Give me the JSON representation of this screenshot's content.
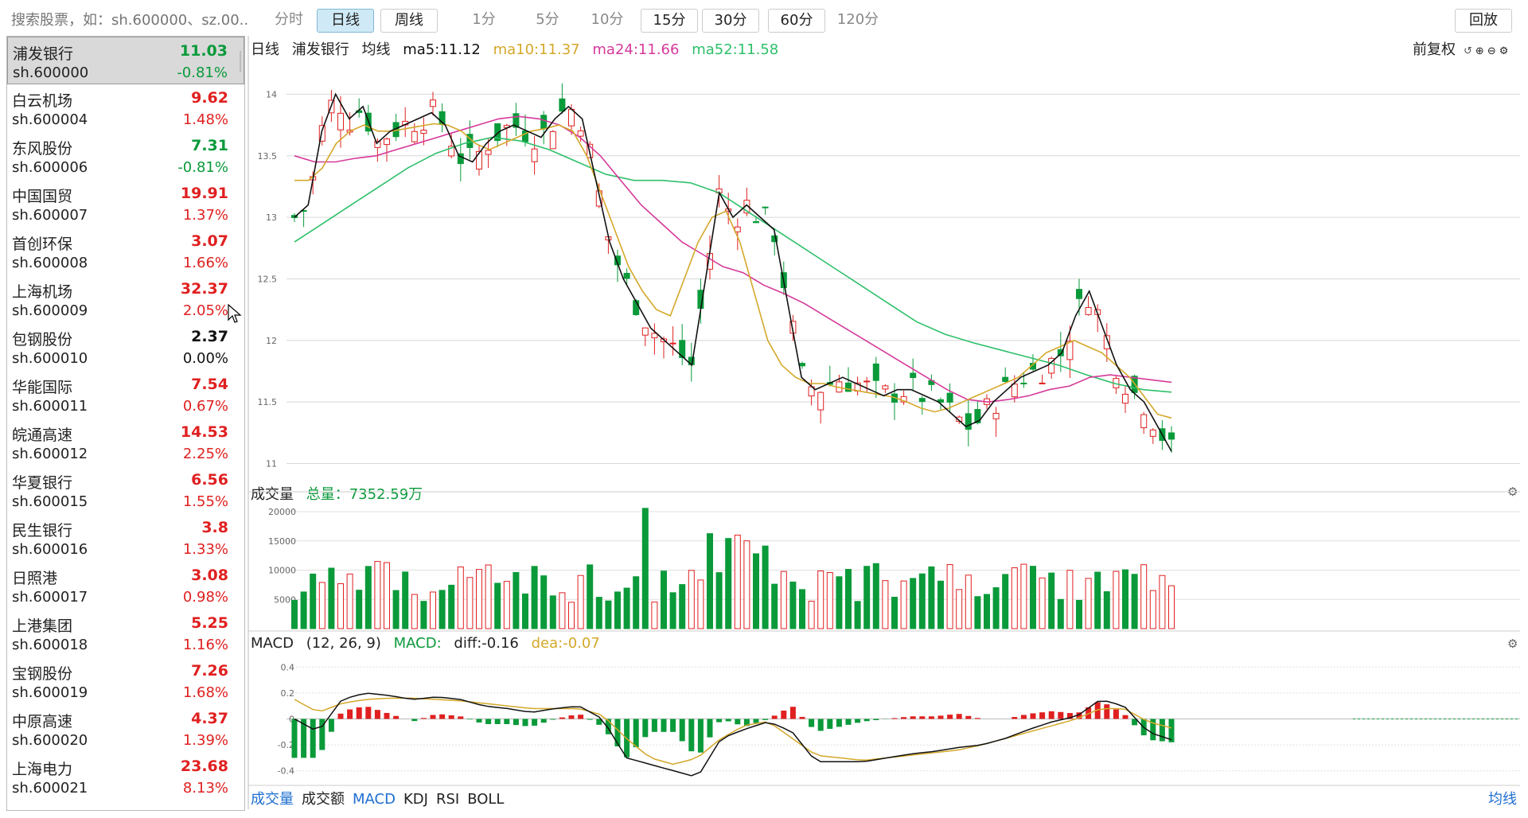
{
  "toolbar": {
    "search_placeholder": "搜索股票，如：sh.600000、sz.00...",
    "periods": [
      "分时",
      "日线",
      "周线",
      "1分",
      "5分",
      "10分",
      "15分",
      "30分",
      "60分",
      "120分"
    ],
    "active": "日线",
    "replay": "回放"
  },
  "stocks": [
    {
      "name": "浦发银行",
      "code": "sh.600000",
      "price": "11.03",
      "pct": "-0.81%",
      "dir": "down"
    },
    {
      "name": "白云机场",
      "code": "sh.600004",
      "price": "9.62",
      "pct": "1.48%",
      "dir": "up"
    },
    {
      "name": "东风股份",
      "code": "sh.600006",
      "price": "7.31",
      "pct": "-0.81%",
      "dir": "down"
    },
    {
      "name": "中国国贸",
      "code": "sh.600007",
      "price": "19.91",
      "pct": "1.37%",
      "dir": "up"
    },
    {
      "name": "首创环保",
      "code": "sh.600008",
      "price": "3.07",
      "pct": "1.66%",
      "dir": "up"
    },
    {
      "name": "上海机场",
      "code": "sh.600009",
      "price": "32.37",
      "pct": "2.05%",
      "dir": "up"
    },
    {
      "name": "包钢股份",
      "code": "sh.600010",
      "price": "2.37",
      "pct": "0.00%",
      "dir": "flat"
    },
    {
      "name": "华能国际",
      "code": "sh.600011",
      "price": "7.54",
      "pct": "0.67%",
      "dir": "up"
    },
    {
      "name": "皖通高速",
      "code": "sh.600012",
      "price": "14.53",
      "pct": "2.25%",
      "dir": "up"
    },
    {
      "name": "华夏银行",
      "code": "sh.600015",
      "price": "6.56",
      "pct": "1.55%",
      "dir": "up"
    },
    {
      "name": "民生银行",
      "code": "sh.600016",
      "price": "3.8",
      "pct": "1.33%",
      "dir": "up"
    },
    {
      "name": "日照港",
      "code": "sh.600017",
      "price": "3.08",
      "pct": "0.98%",
      "dir": "up"
    },
    {
      "name": "上港集团",
      "code": "sh.600018",
      "price": "5.25",
      "pct": "1.16%",
      "dir": "up"
    },
    {
      "name": "宝钢股份",
      "code": "sh.600019",
      "price": "7.26",
      "pct": "1.68%",
      "dir": "up"
    },
    {
      "name": "中原高速",
      "code": "sh.600020",
      "price": "4.37",
      "pct": "1.39%",
      "dir": "up"
    },
    {
      "name": "上海电力",
      "code": "sh.600021",
      "price": "23.68",
      "pct": "8.13%",
      "dir": "up"
    }
  ],
  "kline_legend": {
    "period": "日线",
    "stock": "浦发银行",
    "avg": "均线",
    "ma5": "ma5:11.12",
    "ma10": "ma10:11.37",
    "ma24": "ma24:11.66",
    "ma52": "ma52:11.58",
    "adjust": "前复权"
  },
  "volume_legend": {
    "title": "成交量",
    "total": "总量：7352.59万"
  },
  "macd_legend": {
    "title": "MACD",
    "params": "(12, 26, 9)",
    "macd": "MACD:",
    "diff": "diff:-0.16",
    "dea": "dea:-0.07"
  },
  "bottom_tabs": [
    "成交量",
    "成交额",
    "MACD",
    "KDJ",
    "RSI",
    "BOLL"
  ],
  "bottom_right": "均线",
  "colors": {
    "up": "#e02020",
    "down": "#0a9a3a",
    "ma5": "#111111",
    "ma10": "#d4a82a",
    "ma24": "#d63a9a",
    "ma52": "#2ec06a",
    "macd_blue": "#1e6fd0"
  },
  "chart_data": [
    {
      "type": "candlestick",
      "title": "",
      "y_ticks": [
        14,
        13.5,
        13,
        12.5,
        12,
        11.5,
        11
      ],
      "ylim": [
        10.9,
        14.3
      ],
      "ma5_close": [
        13.0,
        13.1,
        13.7,
        14.0,
        13.8,
        13.9,
        13.6,
        13.7,
        13.75,
        13.8,
        13.85,
        13.75,
        13.5,
        13.45,
        13.6,
        13.7,
        13.75,
        13.7,
        13.65,
        13.8,
        13.9,
        13.8,
        13.3,
        12.8,
        12.5,
        12.3,
        12.1,
        12.0,
        11.9,
        11.8,
        12.5,
        13.2,
        13.0,
        13.1,
        13.0,
        12.9,
        12.3,
        11.7,
        11.6,
        11.65,
        11.7,
        11.65,
        11.6,
        11.55,
        11.6,
        11.6,
        11.55,
        11.5,
        11.4,
        11.3,
        11.35,
        11.5,
        11.6,
        11.7,
        11.75,
        11.8,
        11.9,
        12.2,
        12.4,
        12.1,
        11.8,
        11.6,
        11.5,
        11.3,
        11.1
      ],
      "ma10": [
        13.3,
        13.3,
        13.4,
        13.6,
        13.7,
        13.75,
        13.7,
        13.7,
        13.72,
        13.74,
        13.76,
        13.75,
        13.7,
        13.6,
        13.55,
        13.6,
        13.65,
        13.7,
        13.72,
        13.75,
        13.7,
        13.5,
        13.2,
        12.9,
        12.6,
        12.4,
        12.25,
        12.2,
        12.5,
        12.8,
        13.0,
        13.05,
        12.8,
        12.4,
        12.0,
        11.8,
        11.7,
        11.65,
        11.65,
        11.62,
        11.6,
        11.58,
        11.56,
        11.54,
        11.5,
        11.45,
        11.42,
        11.45,
        11.5,
        11.55,
        11.6,
        11.65,
        11.7,
        11.8,
        11.9,
        11.95,
        12.0,
        11.95,
        11.9,
        11.8,
        11.7,
        11.55,
        11.4,
        11.37
      ],
      "ma24": [
        13.5,
        13.45,
        13.45,
        13.48,
        13.5,
        13.55,
        13.6,
        13.65,
        13.7,
        13.75,
        13.8,
        13.82,
        13.8,
        13.75,
        13.65,
        13.5,
        13.3,
        13.1,
        12.95,
        12.8,
        12.7,
        12.6,
        12.55,
        12.45,
        12.38,
        12.3,
        12.2,
        12.1,
        12.0,
        11.9,
        11.8,
        11.7,
        11.6,
        11.52,
        11.5,
        11.52,
        11.55,
        11.6,
        11.63,
        11.7,
        11.72,
        11.7,
        11.68,
        11.66
      ],
      "ma52": [
        12.8,
        12.95,
        13.1,
        13.25,
        13.4,
        13.52,
        13.6,
        13.65,
        13.62,
        13.55,
        13.45,
        13.35,
        13.3,
        13.3,
        13.28,
        13.2,
        13.05,
        12.9,
        12.75,
        12.6,
        12.45,
        12.3,
        12.15,
        12.05,
        11.98,
        11.92,
        11.86,
        11.8,
        11.72,
        11.65,
        11.6,
        11.58
      ]
    },
    {
      "type": "bar",
      "title": "成交量",
      "y_ticks": [
        20000,
        15000,
        10000,
        5000
      ],
      "ylim": [
        0,
        21500
      ]
    },
    {
      "type": "bar",
      "title": "MACD",
      "y_ticks": [
        0.4,
        0.2,
        0,
        -0.2,
        -0.4
      ],
      "ylim": [
        -0.5,
        0.5
      ]
    }
  ]
}
